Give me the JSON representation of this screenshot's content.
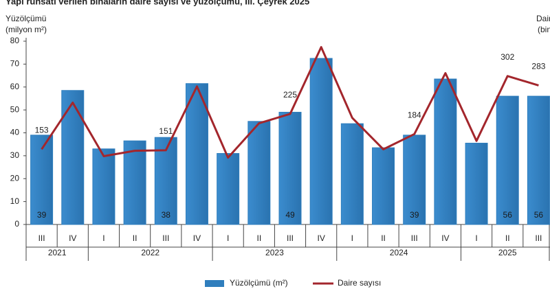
{
  "chart_data": {
    "type": "bar_line",
    "title": "Yapı ruhsatı verilen binaların daire sayısı ve yüzölçümü, III. Çeyrek 2025",
    "y_title": [
      "Yüzölçümü",
      "(milyon m²)"
    ],
    "y2_title": [
      "Daire",
      "(bin)"
    ],
    "categories": [
      "III",
      "IV",
      "I",
      "II",
      "III",
      "IV",
      "I",
      "II",
      "III",
      "IV",
      "I",
      "II",
      "III",
      "IV",
      "I",
      "II",
      "III"
    ],
    "year_labels": [
      "2021",
      null,
      "2022",
      null,
      null,
      null,
      "2023",
      null,
      null,
      null,
      "2024",
      null,
      null,
      null,
      "2025",
      null,
      null
    ],
    "ylim": [
      0,
      80
    ],
    "yticks": [
      0,
      10,
      20,
      30,
      40,
      50,
      60,
      70,
      80
    ],
    "y2lim": [
      0,
      373
    ],
    "series": [
      {
        "name": "Yüzölçümü (m²)",
        "type": "bar",
        "color": "#2f7ebd",
        "values": [
          39,
          58.5,
          33,
          36.5,
          38,
          61.5,
          31,
          45,
          49,
          72.5,
          44,
          33.5,
          39,
          63.5,
          35.5,
          56,
          56
        ],
        "value_labels": [
          "39",
          null,
          null,
          null,
          "38",
          null,
          null,
          null,
          "49",
          null,
          null,
          null,
          "39",
          null,
          null,
          "56",
          "56"
        ]
      },
      {
        "name": "Daire sayısı",
        "type": "line",
        "axis": "y2",
        "color": "#a3262c",
        "values": [
          153,
          248,
          139,
          150,
          151,
          281,
          136,
          206,
          225,
          361,
          217,
          153,
          184,
          308,
          170,
          302,
          283
        ],
        "value_labels": [
          "153",
          null,
          null,
          null,
          "151",
          null,
          null,
          null,
          "225",
          null,
          null,
          null,
          "184",
          null,
          null,
          "302",
          "283"
        ]
      }
    ]
  }
}
